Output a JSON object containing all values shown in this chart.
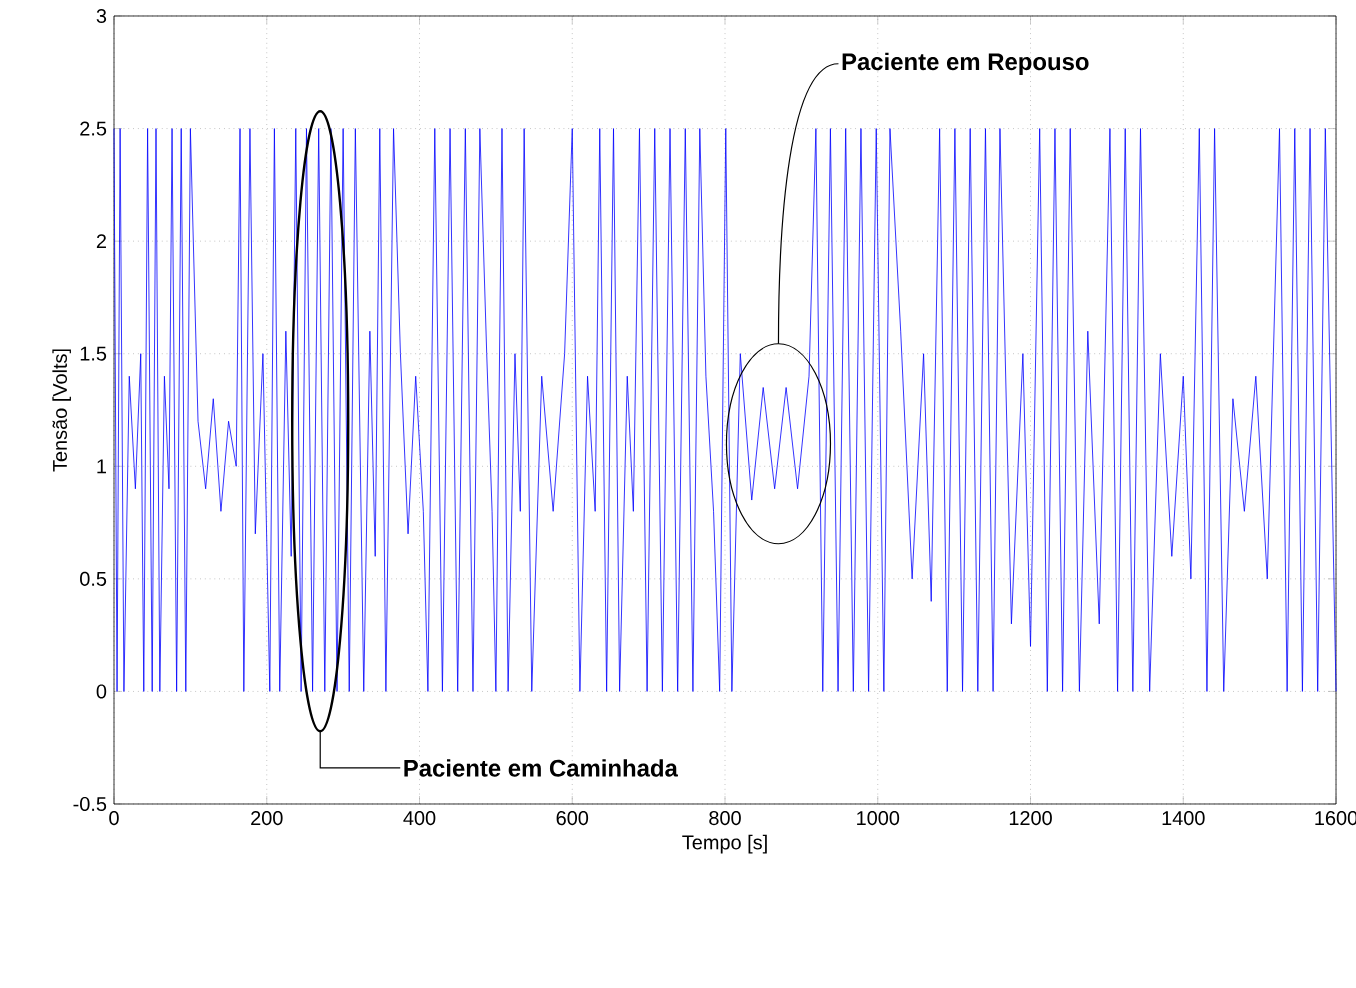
{
  "chart_data": {
    "type": "line",
    "xlabel": "Tempo [s]",
    "ylabel": "Tensão [Volts]",
    "xlim": [
      0,
      1600
    ],
    "xticks": [
      0,
      200,
      400,
      600,
      800,
      1000,
      1200,
      1400,
      1600
    ],
    "ylim": [
      -0.5,
      3
    ],
    "yticks": [
      -0.5,
      0,
      0.5,
      1,
      1.5,
      2,
      2.5,
      3
    ],
    "grid": true,
    "marker": "none",
    "line_style": "solid",
    "annotations": [
      "Paciente em Caminhada",
      "Paciente em Repouso"
    ],
    "series": [
      {
        "color": "#0000ff",
        "x": [
          0,
          4,
          8,
          13,
          20,
          28,
          35,
          39,
          44,
          50,
          55,
          60,
          66,
          72,
          76,
          82,
          88,
          94,
          100,
          110,
          120,
          130,
          140,
          150,
          160,
          165,
          170,
          178,
          185,
          195,
          204,
          210,
          217,
          225,
          232,
          238,
          245,
          252,
          260,
          268,
          276,
          284,
          292,
          300,
          308,
          316,
          327,
          335,
          342,
          348,
          356,
          366,
          375,
          385,
          395,
          405,
          411,
          420,
          430,
          440,
          450,
          460,
          470,
          479,
          488,
          495,
          500,
          508,
          516,
          525,
          532,
          537,
          547,
          560,
          575,
          590,
          600,
          610,
          620,
          630,
          636,
          645,
          654,
          662,
          672,
          680,
          688,
          698,
          708,
          718,
          728,
          738,
          748,
          758,
          767,
          775,
          785,
          793,
          801,
          809,
          820,
          835,
          850,
          865,
          880,
          895,
          910,
          919,
          928,
          938,
          948,
          958,
          968,
          978,
          988,
          998,
          1008,
          1016,
          1030,
          1045,
          1060,
          1070,
          1081,
          1091,
          1101,
          1111,
          1121,
          1131,
          1141,
          1151,
          1160,
          1175,
          1190,
          1200,
          1212,
          1222,
          1232,
          1242,
          1252,
          1264,
          1275,
          1290,
          1304,
          1314,
          1324,
          1334,
          1344,
          1356,
          1370,
          1385,
          1400,
          1410,
          1421,
          1431,
          1441,
          1453,
          1465,
          1480,
          1495,
          1510,
          1526,
          1536,
          1546,
          1556,
          1566,
          1576,
          1586,
          1600
        ],
        "values": [
          2.5,
          0,
          2.5,
          0,
          1.4,
          0.9,
          1.5,
          0,
          2.5,
          0,
          2.5,
          0,
          1.4,
          0.9,
          2.5,
          0,
          2.5,
          0,
          2.5,
          1.2,
          0.9,
          1.3,
          0.8,
          1.2,
          1.0,
          2.5,
          0,
          2.5,
          0.7,
          1.5,
          0,
          2.5,
          0,
          1.6,
          0.6,
          2.5,
          0,
          2.5,
          0,
          2.5,
          0,
          2.5,
          0,
          2.5,
          0,
          2.5,
          0,
          1.6,
          0.6,
          2.5,
          0,
          2.5,
          1.5,
          0.7,
          1.4,
          0.8,
          0,
          2.5,
          0,
          2.5,
          0,
          2.5,
          0,
          2.5,
          1.5,
          0.8,
          0,
          2.5,
          0,
          1.5,
          0.8,
          2.5,
          0,
          1.4,
          0.8,
          1.5,
          2.5,
          0,
          1.4,
          0.8,
          2.5,
          0,
          2.5,
          0,
          1.4,
          0.8,
          2.5,
          0,
          2.5,
          0,
          2.5,
          0,
          2.5,
          0,
          2.5,
          1.4,
          0.8,
          0,
          2.5,
          0,
          1.5,
          0.85,
          1.35,
          0.9,
          1.35,
          0.9,
          1.4,
          2.5,
          0,
          2.5,
          0,
          2.5,
          0,
          2.5,
          0,
          2.5,
          0,
          2.5,
          1.6,
          0.5,
          1.5,
          0.4,
          2.5,
          0,
          2.5,
          0,
          2.5,
          0,
          2.5,
          0,
          2.5,
          0.3,
          1.5,
          0.2,
          2.5,
          0,
          2.5,
          0,
          2.5,
          0,
          1.6,
          0.3,
          2.5,
          0,
          2.5,
          0,
          2.5,
          0,
          1.5,
          0.6,
          1.4,
          0.5,
          2.5,
          0,
          2.5,
          0,
          1.3,
          0.8,
          1.4,
          0.5,
          2.5,
          0,
          2.5,
          0,
          2.5,
          0,
          2.5,
          0
        ]
      }
    ]
  }
}
